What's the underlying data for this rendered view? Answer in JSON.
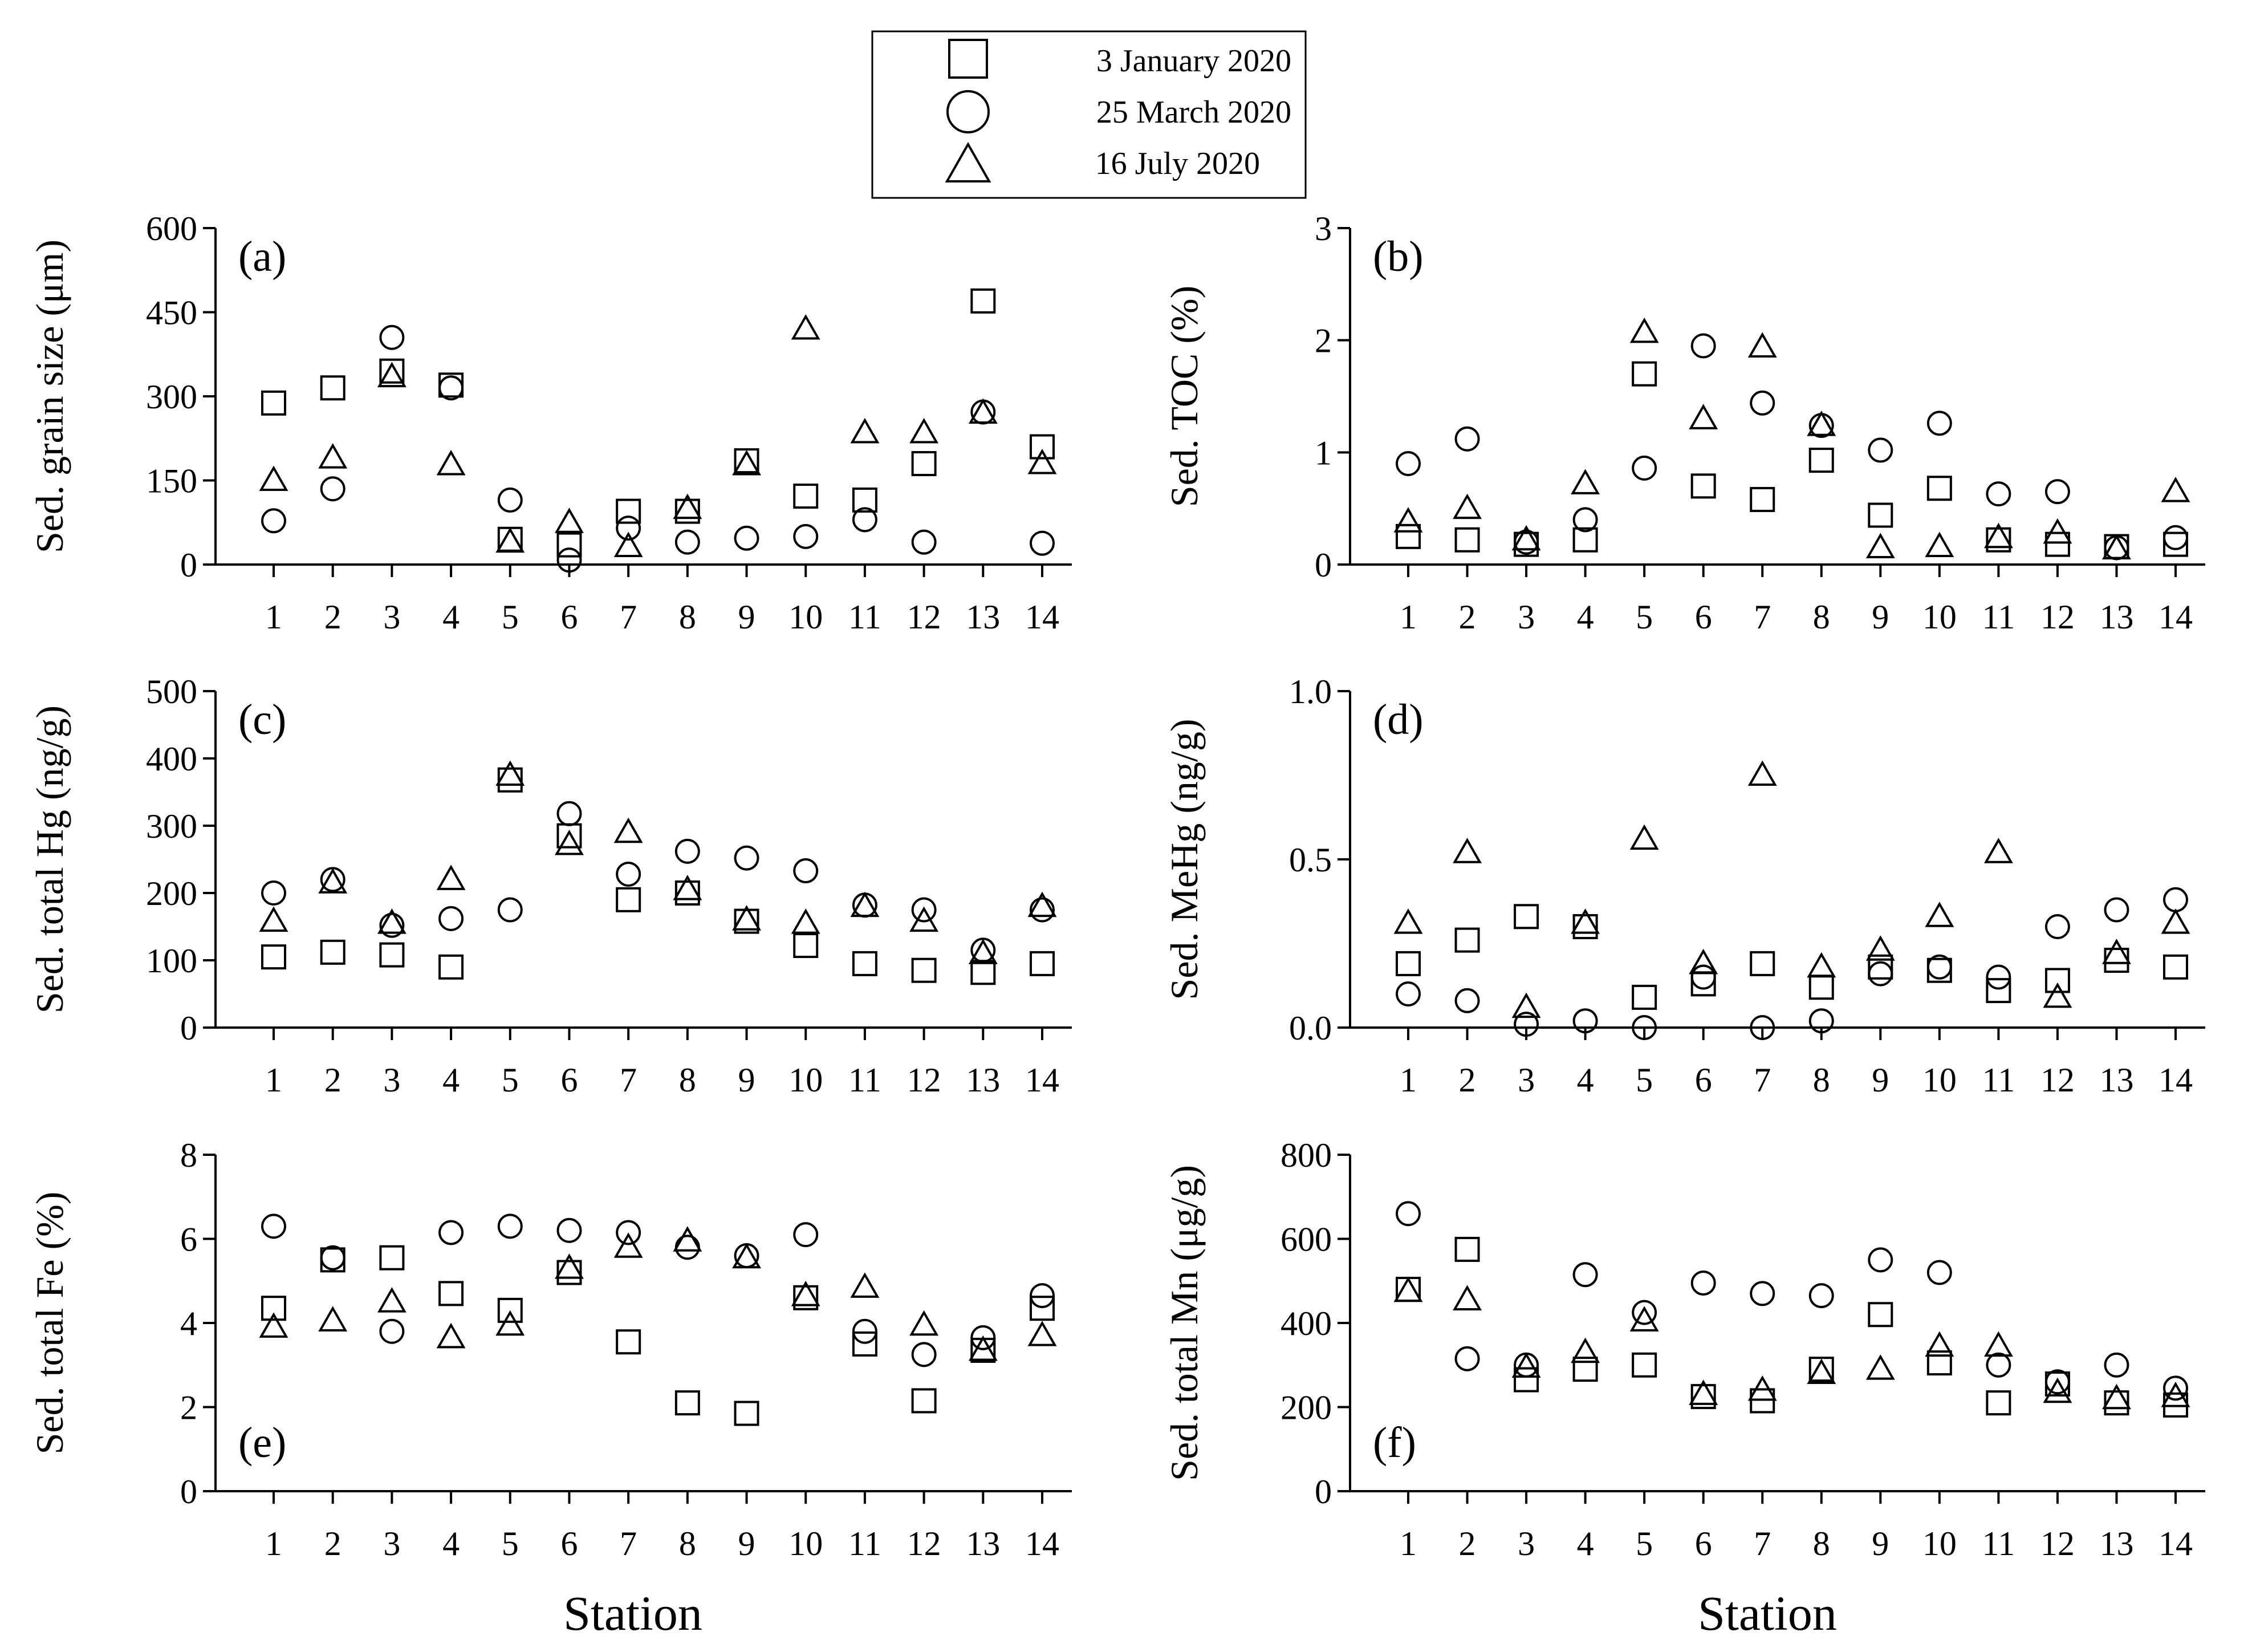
{
  "legend": [
    {
      "marker": "square",
      "label": "3 January 2020"
    },
    {
      "marker": "circle",
      "label": "25 March 2020"
    },
    {
      "marker": "triangle",
      "label": "16 July 2020"
    }
  ],
  "x_titles": [
    "Station",
    "Station"
  ],
  "colors": {
    "ink": "#000000",
    "background": "#ffffff"
  },
  "chart_data": [
    {
      "type": "scatter",
      "panel": "(a)",
      "ylabel": "Sed. grain size (μm)",
      "xlabel": "",
      "x": [
        1,
        2,
        3,
        4,
        5,
        6,
        7,
        8,
        9,
        10,
        11,
        12,
        13,
        14
      ],
      "ylim": [
        0,
        600
      ],
      "yticks": [
        0,
        150,
        300,
        450,
        600
      ],
      "ytick_labels": [
        "0",
        "150",
        "300",
        "450",
        "600"
      ],
      "series": [
        {
          "name": "3 January 2020",
          "marker": "square",
          "values": [
            288,
            315,
            345,
            320,
            45,
            35,
            95,
            95,
            185,
            122,
            115,
            180,
            470,
            210
          ]
        },
        {
          "name": "25 March 2020",
          "marker": "circle",
          "values": [
            78,
            135,
            405,
            315,
            115,
            8,
            65,
            40,
            47,
            50,
            80,
            40,
            272,
            38
          ]
        },
        {
          "name": "16 July 2020",
          "marker": "triangle",
          "values": [
            150,
            190,
            335,
            178,
            40,
            75,
            32,
            100,
            178,
            420,
            235,
            235,
            270,
            180
          ]
        }
      ]
    },
    {
      "type": "scatter",
      "panel": "(b)",
      "ylabel": "Sed. TOC (%)",
      "xlabel": "",
      "x": [
        1,
        2,
        3,
        4,
        5,
        6,
        7,
        8,
        9,
        10,
        11,
        12,
        13,
        14
      ],
      "ylim": [
        0,
        3
      ],
      "yticks": [
        0,
        1,
        2,
        3
      ],
      "ytick_labels": [
        "0",
        "1",
        "2",
        "3"
      ],
      "series": [
        {
          "name": "3 January 2020",
          "marker": "square",
          "values": [
            0.25,
            0.22,
            0.18,
            0.22,
            1.7,
            0.7,
            0.58,
            0.93,
            0.44,
            0.68,
            0.22,
            0.18,
            0.16,
            0.18
          ]
        },
        {
          "name": "25 March 2020",
          "marker": "circle",
          "values": [
            0.9,
            1.12,
            0.2,
            0.4,
            0.86,
            1.95,
            1.44,
            1.24,
            1.02,
            1.26,
            0.63,
            0.65,
            0.15,
            0.24
          ]
        },
        {
          "name": "16 July 2020",
          "marker": "triangle",
          "values": [
            0.38,
            0.5,
            0.22,
            0.72,
            2.07,
            1.3,
            1.94,
            1.24,
            0.15,
            0.16,
            0.24,
            0.28,
            0.14,
            0.65
          ]
        }
      ]
    },
    {
      "type": "scatter",
      "panel": "(c)",
      "ylabel": "Sed. total Hg (ng/g)",
      "xlabel": "",
      "x": [
        1,
        2,
        3,
        4,
        5,
        6,
        7,
        8,
        9,
        10,
        11,
        12,
        13,
        14
      ],
      "ylim": [
        0,
        500
      ],
      "yticks": [
        0,
        100,
        200,
        300,
        400,
        500
      ],
      "ytick_labels": [
        "0",
        "100",
        "200",
        "300",
        "400",
        "500"
      ],
      "series": [
        {
          "name": "3 January 2020",
          "marker": "square",
          "values": [
            105,
            112,
            108,
            90,
            368,
            285,
            190,
            200,
            158,
            122,
            95,
            85,
            82,
            95
          ]
        },
        {
          "name": "25 March 2020",
          "marker": "circle",
          "values": [
            200,
            220,
            152,
            162,
            175,
            318,
            228,
            262,
            252,
            233,
            182,
            175,
            115,
            175
          ]
        },
        {
          "name": "16 July 2020",
          "marker": "triangle",
          "values": [
            158,
            215,
            155,
            220,
            375,
            272,
            290,
            205,
            160,
            155,
            180,
            158,
            110,
            180
          ]
        }
      ]
    },
    {
      "type": "scatter",
      "panel": "(d)",
      "ylabel": "Sed. MeHg (ng/g)",
      "xlabel": "",
      "x": [
        1,
        2,
        3,
        4,
        5,
        6,
        7,
        8,
        9,
        10,
        11,
        12,
        13,
        14
      ],
      "ylim": [
        0,
        1.0
      ],
      "yticks": [
        0,
        0.5,
        1.0
      ],
      "ytick_labels": [
        "0.0",
        "0.5",
        "1.0"
      ],
      "series": [
        {
          "name": "3 January 2020",
          "marker": "square",
          "values": [
            0.19,
            0.26,
            0.33,
            0.3,
            0.09,
            0.13,
            0.19,
            0.12,
            0.18,
            0.17,
            0.11,
            0.14,
            0.2,
            0.18
          ]
        },
        {
          "name": "25 March 2020",
          "marker": "circle",
          "values": [
            0.1,
            0.08,
            0.01,
            0.02,
            0.0,
            0.15,
            0.0,
            0.02,
            0.16,
            0.18,
            0.15,
            0.3,
            0.35,
            0.38
          ]
        },
        {
          "name": "16 July 2020",
          "marker": "triangle",
          "values": [
            0.31,
            0.52,
            0.06,
            0.31,
            0.56,
            0.19,
            0.75,
            0.18,
            0.23,
            0.33,
            0.52,
            0.09,
            0.22,
            0.31
          ]
        }
      ]
    },
    {
      "type": "scatter",
      "panel": "(e)",
      "ylabel": "Sed. total Fe (%)",
      "xlabel": "Station",
      "x": [
        1,
        2,
        3,
        4,
        5,
        6,
        7,
        8,
        9,
        10,
        11,
        12,
        13,
        14
      ],
      "ylim": [
        0,
        8
      ],
      "yticks": [
        0,
        2,
        4,
        6,
        8
      ],
      "ytick_labels": [
        "0",
        "2",
        "4",
        "6",
        "8"
      ],
      "series": [
        {
          "name": "3 January 2020",
          "marker": "square",
          "values": [
            4.35,
            5.5,
            5.55,
            4.7,
            4.3,
            5.2,
            3.55,
            2.1,
            1.85,
            4.6,
            3.5,
            2.15,
            3.35,
            4.35
          ]
        },
        {
          "name": "25 March 2020",
          "marker": "circle",
          "values": [
            6.3,
            5.55,
            3.8,
            6.15,
            6.3,
            6.2,
            6.15,
            5.8,
            5.6,
            6.1,
            3.8,
            3.25,
            3.65,
            4.65
          ]
        },
        {
          "name": "16 July 2020",
          "marker": "triangle",
          "values": [
            3.9,
            4.05,
            4.5,
            3.65,
            3.95,
            5.3,
            5.8,
            5.95,
            5.55,
            4.65,
            4.85,
            3.95,
            3.35,
            3.7
          ]
        }
      ]
    },
    {
      "type": "scatter",
      "panel": "(f)",
      "ylabel": "Sed. total Mn (μg/g)",
      "xlabel": "Station",
      "x": [
        1,
        2,
        3,
        4,
        5,
        6,
        7,
        8,
        9,
        10,
        11,
        12,
        13,
        14
      ],
      "ylim": [
        0,
        800
      ],
      "yticks": [
        0,
        200,
        400,
        600,
        800
      ],
      "ytick_labels": [
        "0",
        "200",
        "400",
        "600",
        "800"
      ],
      "series": [
        {
          "name": "3 January 2020",
          "marker": "square",
          "values": [
            480,
            575,
            265,
            290,
            300,
            225,
            215,
            290,
            420,
            305,
            210,
            255,
            210,
            205
          ]
        },
        {
          "name": "25 March 2020",
          "marker": "circle",
          "values": [
            660,
            315,
            300,
            515,
            425,
            495,
            470,
            465,
            550,
            520,
            300,
            260,
            300,
            245
          ]
        },
        {
          "name": "16 July 2020",
          "marker": "triangle",
          "values": [
            475,
            455,
            295,
            330,
            405,
            230,
            240,
            280,
            290,
            345,
            345,
            235,
            220,
            225
          ]
        }
      ]
    }
  ]
}
